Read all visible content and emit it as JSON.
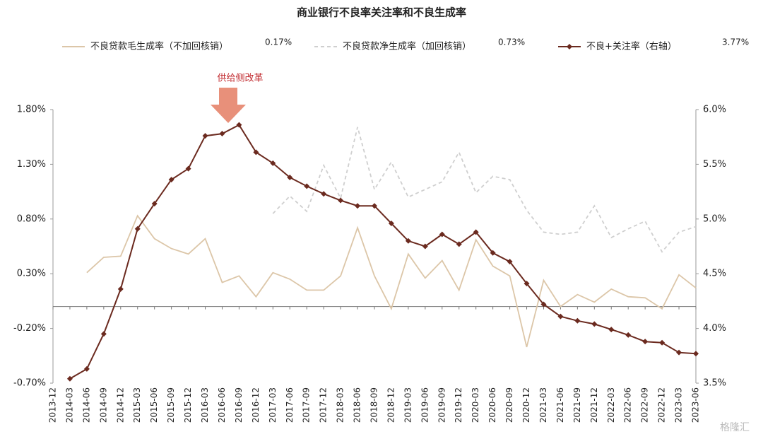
{
  "chart_data": {
    "type": "line",
    "title": "商业银行不良率关注率和不良生成率",
    "annotation": "供给侧改革",
    "watermark": "格隆汇",
    "categories": [
      "2013-12",
      "2014-03",
      "2014-06",
      "2014-09",
      "2014-12",
      "2015-03",
      "2015-06",
      "2015-09",
      "2015-12",
      "2016-03",
      "2016-06",
      "2016-09",
      "2016-12",
      "2017-03",
      "2017-06",
      "2017-09",
      "2017-12",
      "2018-03",
      "2018-06",
      "2018-09",
      "2018-12",
      "2019-03",
      "2019-06",
      "2019-09",
      "2019-12",
      "2020-03",
      "2020-06",
      "2020-09",
      "2020-12",
      "2021-03",
      "2021-06",
      "2021-09",
      "2021-12",
      "2022-03",
      "2022-06",
      "2022-09",
      "2022-12",
      "2023-03",
      "2023-06"
    ],
    "ylim": [
      -0.7,
      1.8
    ],
    "yticks": [
      {
        "value": -0.7,
        "label": "-0.70%"
      },
      {
        "value": -0.2,
        "label": "-0.20%"
      },
      {
        "value": 0.3,
        "label": "0.30%"
      },
      {
        "value": 0.8,
        "label": "0.80%"
      },
      {
        "value": 1.3,
        "label": "1.30%"
      },
      {
        "value": 1.8,
        "label": "1.80%"
      }
    ],
    "y2lim": [
      3.5,
      6.0
    ],
    "y2ticks": [
      {
        "value": 3.5,
        "label": "3.5%"
      },
      {
        "value": 4.0,
        "label": "4.0%"
      },
      {
        "value": 4.5,
        "label": "4.5%"
      },
      {
        "value": 5.0,
        "label": "5.0%"
      },
      {
        "value": 5.5,
        "label": "5.5%"
      },
      {
        "value": 6.0,
        "label": "6.0%"
      }
    ],
    "series": [
      {
        "name": "不良贷款毛生成率（不加回核销）",
        "color": "#dcc6a8",
        "dash": false,
        "marker": false,
        "latest_label": "0.17%",
        "values": [
          null,
          null,
          0.31,
          0.45,
          0.46,
          0.83,
          0.62,
          0.53,
          0.48,
          0.62,
          0.22,
          0.28,
          0.09,
          0.31,
          0.25,
          0.15,
          0.15,
          0.28,
          0.72,
          0.28,
          -0.02,
          0.48,
          0.26,
          0.42,
          0.15,
          0.61,
          0.37,
          0.28,
          -0.37,
          0.24,
          0.0,
          0.11,
          0.04,
          0.16,
          0.09,
          0.08,
          -0.02,
          0.29,
          0.17
        ]
      },
      {
        "name": "不良贷款净生成率（加回核销）",
        "color": "#cfcfcf",
        "dash": true,
        "marker": false,
        "latest_label": "0.73%",
        "values": [
          null,
          null,
          null,
          null,
          null,
          null,
          null,
          null,
          null,
          null,
          null,
          null,
          null,
          0.85,
          1.01,
          0.87,
          1.29,
          0.99,
          1.64,
          1.07,
          1.32,
          1.0,
          1.07,
          1.14,
          1.41,
          1.04,
          1.19,
          1.16,
          0.88,
          0.68,
          0.66,
          0.68,
          0.92,
          0.63,
          0.71,
          0.78,
          0.5,
          0.68,
          0.73
        ]
      },
      {
        "name": "不良+关注率（右轴）",
        "color": "#6b2a1f",
        "dash": false,
        "marker": true,
        "axis": "y2",
        "latest_label": "3.77%",
        "values": [
          null,
          3.54,
          3.63,
          3.95,
          4.36,
          4.91,
          5.14,
          5.36,
          5.46,
          5.76,
          5.78,
          5.86,
          5.61,
          5.51,
          5.38,
          5.3,
          5.23,
          5.17,
          5.12,
          5.12,
          4.96,
          4.8,
          4.75,
          4.86,
          4.77,
          4.88,
          4.69,
          4.61,
          4.41,
          4.22,
          4.11,
          4.07,
          4.04,
          3.99,
          3.94,
          3.88,
          3.87,
          3.78,
          3.77
        ]
      }
    ]
  }
}
